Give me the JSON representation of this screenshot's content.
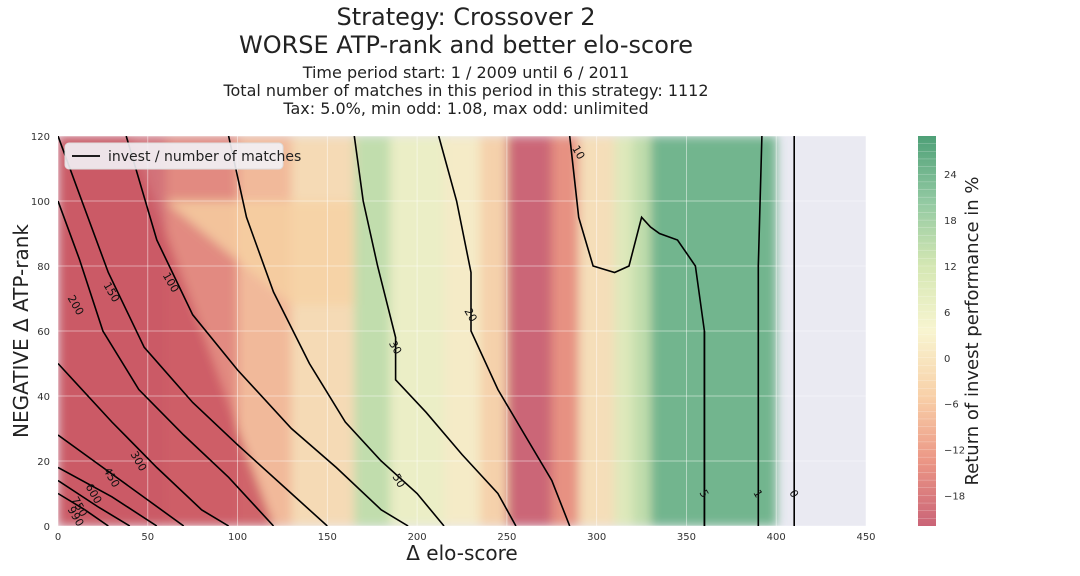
{
  "chart_data": {
    "type": "heatmap",
    "title_line1": "Strategy: Crossover 2",
    "title_line2": "WORSE ATP-rank and better elo-score",
    "subtitle_line1": "Time period start: 1 / 2009 until 6 / 2011",
    "subtitle_line2": "Total number of matches in this period in this strategy: 1112",
    "subtitle_line3": "Tax: 5.0%, min odd: 1.08, max odd: unlimited",
    "xlabel": "Δ elo-score",
    "ylabel": "NEGATIVE Δ ATP-rank",
    "xlim": [
      0,
      450
    ],
    "ylim": [
      0,
      120
    ],
    "xticks": [
      "0",
      "50",
      "100",
      "150",
      "200",
      "250",
      "300",
      "350",
      "400",
      "450"
    ],
    "yticks": [
      "0",
      "20",
      "40",
      "60",
      "80",
      "100",
      "120"
    ],
    "legend": {
      "label": "invest / number of matches",
      "placement": "top-left"
    },
    "colorbar": {
      "label": "Return of invest performance in %",
      "range": [
        -22,
        29
      ],
      "ticks": [
        "−18",
        "−12",
        "−6",
        "0",
        "6",
        "12",
        "18",
        "24"
      ],
      "tick_values": [
        -18,
        -12,
        -6,
        0,
        6,
        12,
        18,
        24
      ],
      "colormap": [
        "#c1495f",
        "#e88470",
        "#f7c899",
        "#f7f3c8",
        "#cde3a6",
        "#7ebf91",
        "#2f8f5f"
      ]
    },
    "heat_columns": [
      {
        "x0": 0,
        "x1": 60,
        "value": -19
      },
      {
        "x0": 60,
        "x1": 100,
        "value": -15
      },
      {
        "x0": 100,
        "x1": 130,
        "value": -8
      },
      {
        "x0": 130,
        "x1": 165,
        "value": -2
      },
      {
        "x0": 165,
        "x1": 185,
        "value": 14
      },
      {
        "x0": 185,
        "x1": 215,
        "value": 6
      },
      {
        "x0": 215,
        "x1": 235,
        "value": 2
      },
      {
        "x0": 235,
        "x1": 250,
        "value": -4
      },
      {
        "x0": 250,
        "x1": 275,
        "value": -21
      },
      {
        "x0": 275,
        "x1": 290,
        "value": -14
      },
      {
        "x0": 290,
        "x1": 310,
        "value": -1
      },
      {
        "x0": 310,
        "x1": 320,
        "value": 9
      },
      {
        "x0": 320,
        "x1": 330,
        "value": 14
      },
      {
        "x0": 330,
        "x1": 400,
        "value": 24
      }
    ],
    "contour_lines": [
      {
        "label": "990",
        "label_at": [
          10,
          3
        ],
        "points": [
          [
            0,
            10
          ],
          [
            15,
            5
          ],
          [
            28,
            0
          ]
        ]
      },
      {
        "label": "750",
        "label_at": [
          12,
          6
        ],
        "points": [
          [
            0,
            14
          ],
          [
            22,
            6
          ],
          [
            40,
            0
          ]
        ]
      },
      {
        "label": "600",
        "label_at": [
          20,
          10
        ],
        "points": [
          [
            0,
            18
          ],
          [
            30,
            9
          ],
          [
            55,
            0
          ]
        ]
      },
      {
        "label": "450",
        "label_at": [
          30,
          15
        ],
        "points": [
          [
            0,
            28
          ],
          [
            25,
            18
          ],
          [
            50,
            8
          ],
          [
            70,
            0
          ]
        ]
      },
      {
        "label": "300",
        "label_at": [
          45,
          20
        ],
        "points": [
          [
            0,
            50
          ],
          [
            30,
            32
          ],
          [
            55,
            18
          ],
          [
            80,
            5
          ],
          [
            95,
            0
          ]
        ]
      },
      {
        "label": "200",
        "label_at": [
          10,
          68
        ],
        "points": [
          [
            0,
            100
          ],
          [
            12,
            82
          ],
          [
            25,
            60
          ],
          [
            45,
            42
          ],
          [
            70,
            28
          ],
          [
            95,
            15
          ],
          [
            120,
            0
          ]
        ]
      },
      {
        "label": "150",
        "label_at": [
          30,
          72
        ],
        "points": [
          [
            0,
            120
          ],
          [
            12,
            102
          ],
          [
            28,
            78
          ],
          [
            48,
            55
          ],
          [
            75,
            38
          ],
          [
            100,
            25
          ],
          [
            130,
            10
          ],
          [
            150,
            0
          ]
        ]
      },
      {
        "label": "100",
        "label_at": [
          63,
          75
        ],
        "points": [
          [
            38,
            120
          ],
          [
            55,
            88
          ],
          [
            75,
            65
          ],
          [
            100,
            48
          ],
          [
            130,
            30
          ],
          [
            155,
            18
          ],
          [
            180,
            5
          ],
          [
            195,
            0
          ]
        ]
      },
      {
        "label": "50",
        "label_at": [
          190,
          14
        ],
        "points": [
          [
            95,
            120
          ],
          [
            105,
            95
          ],
          [
            120,
            72
          ],
          [
            140,
            50
          ],
          [
            160,
            32
          ],
          [
            180,
            20
          ],
          [
            200,
            10
          ],
          [
            215,
            0
          ]
        ]
      },
      {
        "label": "30",
        "label_at": [
          188,
          55
        ],
        "points": [
          [
            165,
            120
          ],
          [
            170,
            100
          ],
          [
            178,
            80
          ],
          [
            188,
            58
          ],
          [
            188,
            45
          ],
          [
            205,
            35
          ],
          [
            225,
            22
          ],
          [
            245,
            10
          ],
          [
            255,
            0
          ]
        ]
      },
      {
        "label": "20",
        "label_at": [
          230,
          65
        ],
        "points": [
          [
            212,
            120
          ],
          [
            222,
            100
          ],
          [
            230,
            78
          ],
          [
            230,
            60
          ],
          [
            245,
            42
          ],
          [
            260,
            28
          ],
          [
            275,
            14
          ],
          [
            285,
            0
          ]
        ]
      },
      {
        "label": "10",
        "label_at": [
          290,
          115
        ],
        "points": [
          [
            285,
            120
          ],
          [
            290,
            95
          ],
          [
            298,
            80
          ],
          [
            310,
            78
          ],
          [
            318,
            80
          ],
          [
            325,
            95
          ],
          [
            330,
            92
          ],
          [
            335,
            90
          ],
          [
            345,
            88
          ],
          [
            355,
            80
          ],
          [
            360,
            60
          ],
          [
            360,
            0
          ]
        ]
      },
      {
        "label": "5",
        "label_at": [
          360,
          10
        ],
        "points": [
          [
            360,
            60
          ],
          [
            360,
            0
          ]
        ]
      },
      {
        "label": "1",
        "label_at": [
          390,
          10
        ],
        "points": [
          [
            392,
            120
          ],
          [
            390,
            80
          ],
          [
            390,
            0
          ]
        ]
      },
      {
        "label": "0",
        "label_at": [
          410,
          10
        ],
        "points": [
          [
            410,
            120
          ],
          [
            410,
            0
          ]
        ]
      }
    ]
  }
}
